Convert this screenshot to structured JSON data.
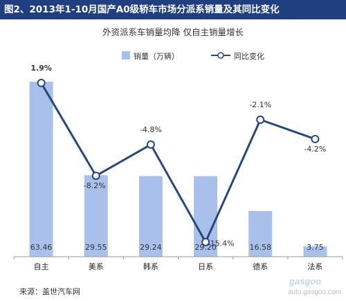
{
  "header": {
    "title": "图2、2013年1-10月国产A0级轿车市场分派系销量及其同比变化"
  },
  "footer": {
    "source": "来源：盖世汽车网"
  },
  "watermark": {
    "brand": "gasgoo",
    "url": "auto.gasgoo.com"
  },
  "colors": {
    "bar": "#a9c1ea",
    "line": "#26477f",
    "title_bg": "#1f3f80",
    "marker_fill": "#ffffff"
  },
  "chart_data": {
    "type": "bar+line",
    "title": "",
    "subtitle": "外资派系车销量均降 仅自主销量增长",
    "categories": [
      "自主",
      "美系",
      "韩系",
      "日系",
      "德系",
      "法系"
    ],
    "series": [
      {
        "name": "销量（万辆）",
        "type": "bar",
        "axis": "left",
        "values": [
          63.46,
          29.55,
          29.24,
          29.2,
          16.58,
          3.75
        ],
        "labels": [
          "63.46",
          "29.55",
          "29.24",
          "29.20",
          "16.58",
          "3.75"
        ]
      },
      {
        "name": "同比变化",
        "type": "line",
        "axis": "right",
        "values": [
          1.9,
          -8.2,
          -4.8,
          -15.4,
          -2.1,
          -4.2
        ],
        "labels": [
          "1.9%",
          "-8.2%",
          "-4.8%",
          "-15.4%",
          "-2.1%",
          "-4.2%"
        ]
      }
    ],
    "ylim_left": [
      0,
      70
    ],
    "ylim_right": [
      -17,
      4
    ],
    "legend": "top-center",
    "grid": false
  }
}
